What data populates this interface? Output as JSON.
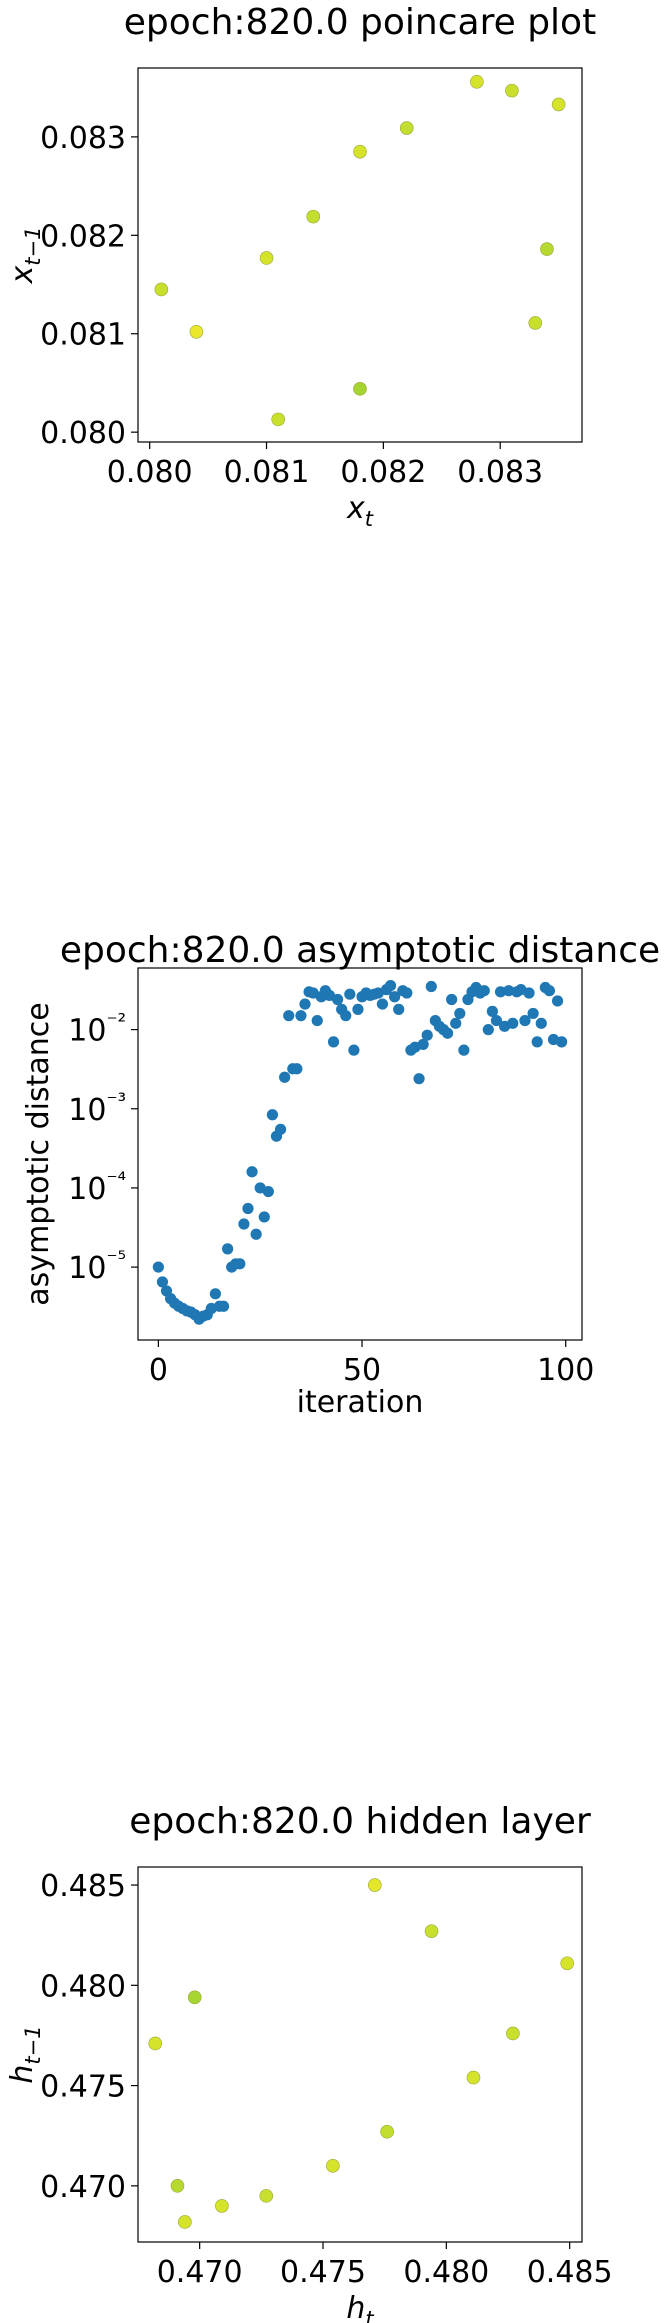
{
  "chart_data": [
    {
      "type": "scatter",
      "title": "epoch:820.0 poincare plot",
      "xlabel": {
        "base": "x",
        "sub": "t"
      },
      "ylabel": {
        "base": "x",
        "sub": "t−1"
      },
      "xlim": [
        0.0799,
        0.0837
      ],
      "ylim": [
        0.0799,
        0.0837
      ],
      "xticks": [
        0.08,
        0.081,
        0.082,
        0.083
      ],
      "yticks": [
        0.08,
        0.081,
        0.082,
        0.083
      ],
      "tick_decimals": 3,
      "x": [
        0.0801,
        0.0804,
        0.081,
        0.0811,
        0.0814,
        0.0818,
        0.0818,
        0.0822,
        0.0828,
        0.0831,
        0.0833,
        0.0834,
        0.0835
      ],
      "y": [
        0.08145,
        0.08102,
        0.08177,
        0.08013,
        0.08219,
        0.08285,
        0.08044,
        0.08309,
        0.08356,
        0.08347,
        0.08111,
        0.08186,
        0.08333
      ],
      "colors": [
        "#c8e02d",
        "#e9e82a",
        "#d6e32b",
        "#c8e02d",
        "#c3de2e",
        "#d6e32b",
        "#a6d532",
        "#c3de2e",
        "#d6e32b",
        "#c8e02d",
        "#c8e02d",
        "#b5d930",
        "#d6e32b"
      ],
      "grid": false
    },
    {
      "type": "scatter",
      "title": "epoch:820.0 asymptotic distance",
      "xlabel": "iteration",
      "ylabel": "asymptotic distance",
      "xscale": "linear",
      "yscale": "log",
      "xlim": [
        -5,
        104
      ],
      "ylim": [
        1.2e-06,
        0.06
      ],
      "xticks": [
        0,
        50,
        100
      ],
      "yticks": [
        {
          "value": 1e-05,
          "label": "10⁻⁵"
        },
        {
          "value": 0.0001,
          "label": "10⁻⁴"
        },
        {
          "value": 0.001,
          "label": "10⁻³"
        },
        {
          "value": 0.01,
          "label": "10⁻²"
        }
      ],
      "x": [
        0,
        1,
        2,
        3,
        4,
        5,
        6,
        7,
        8,
        9,
        10,
        11,
        12,
        13,
        14,
        15,
        16,
        17,
        18,
        19,
        20,
        21,
        22,
        23,
        24,
        25,
        26,
        27,
        28,
        29,
        30,
        31,
        32,
        33,
        34,
        35,
        36,
        37,
        38,
        39,
        40,
        41,
        42,
        43,
        44,
        45,
        46,
        47,
        48,
        49,
        50,
        51,
        52,
        53,
        54,
        55,
        56,
        57,
        58,
        59,
        60,
        61,
        62,
        63,
        64,
        65,
        66,
        67,
        68,
        69,
        70,
        71,
        72,
        73,
        74,
        75,
        76,
        77,
        78,
        79,
        80,
        81,
        82,
        83,
        84,
        85,
        86,
        87,
        88,
        89,
        90,
        91,
        92,
        93,
        94,
        95,
        96,
        97,
        98,
        99
      ],
      "y": [
        1e-05,
        6.5e-06,
        5e-06,
        4e-06,
        3.5e-06,
        3.2e-06,
        3e-06,
        2.8e-06,
        2.7e-06,
        2.5e-06,
        2.2e-06,
        2.4e-06,
        2.5e-06,
        3e-06,
        4.6e-06,
        3.2e-06,
        3.2e-06,
        1.7e-05,
        1e-05,
        1.1e-05,
        1.1e-05,
        3.5e-05,
        5.5e-05,
        0.00016,
        2.6e-05,
        0.0001,
        4.3e-05,
        9e-05,
        0.00084,
        0.00045,
        0.00055,
        0.0025,
        0.015,
        0.0032,
        0.0032,
        0.015,
        0.021,
        0.03,
        0.029,
        0.013,
        0.026,
        0.031,
        0.027,
        0.007,
        0.024,
        0.018,
        0.015,
        0.028,
        0.0055,
        0.018,
        0.026,
        0.029,
        0.027,
        0.028,
        0.029,
        0.021,
        0.032,
        0.036,
        0.026,
        0.018,
        0.031,
        0.029,
        0.0055,
        0.006,
        0.0024,
        0.0065,
        0.0085,
        0.035,
        0.013,
        0.011,
        0.01,
        0.009,
        0.024,
        0.012,
        0.016,
        0.0055,
        0.024,
        0.03,
        0.034,
        0.029,
        0.031,
        0.01,
        0.017,
        0.013,
        0.03,
        0.011,
        0.031,
        0.012,
        0.03,
        0.032,
        0.013,
        0.029,
        0.016,
        0.007,
        0.012,
        0.034,
        0.031,
        0.0075,
        0.023,
        0.007
      ],
      "marker_color": "#1f77b4",
      "grid": false
    },
    {
      "type": "scatter",
      "title": "epoch:820.0 hidden layer",
      "xlabel": {
        "base": "h",
        "sub": "t"
      },
      "ylabel": {
        "base": "h",
        "sub": "t−1"
      },
      "xlim": [
        0.4675,
        0.4855
      ],
      "ylim": [
        0.4672,
        0.4859
      ],
      "xticks": [
        0.47,
        0.475,
        0.48,
        0.485
      ],
      "yticks": [
        0.47,
        0.475,
        0.48,
        0.485
      ],
      "tick_decimals": 3,
      "x": [
        0.4682,
        0.4691,
        0.4694,
        0.4698,
        0.4709,
        0.4727,
        0.4754,
        0.4771,
        0.4776,
        0.4794,
        0.4811,
        0.4827,
        0.4849
      ],
      "y": [
        0.4771,
        0.47,
        0.4682,
        0.4794,
        0.469,
        0.4695,
        0.471,
        0.485,
        0.4727,
        0.4827,
        0.4754,
        0.4776,
        0.4811
      ],
      "colors": [
        "#d6e32b",
        "#b5d930",
        "#d6e32b",
        "#a6d532",
        "#d6e32b",
        "#c8e02d",
        "#d6e32b",
        "#e3e62b",
        "#c3de2e",
        "#c8e02d",
        "#d6e32b",
        "#c8e02d",
        "#d6e32b"
      ],
      "grid": false
    }
  ]
}
